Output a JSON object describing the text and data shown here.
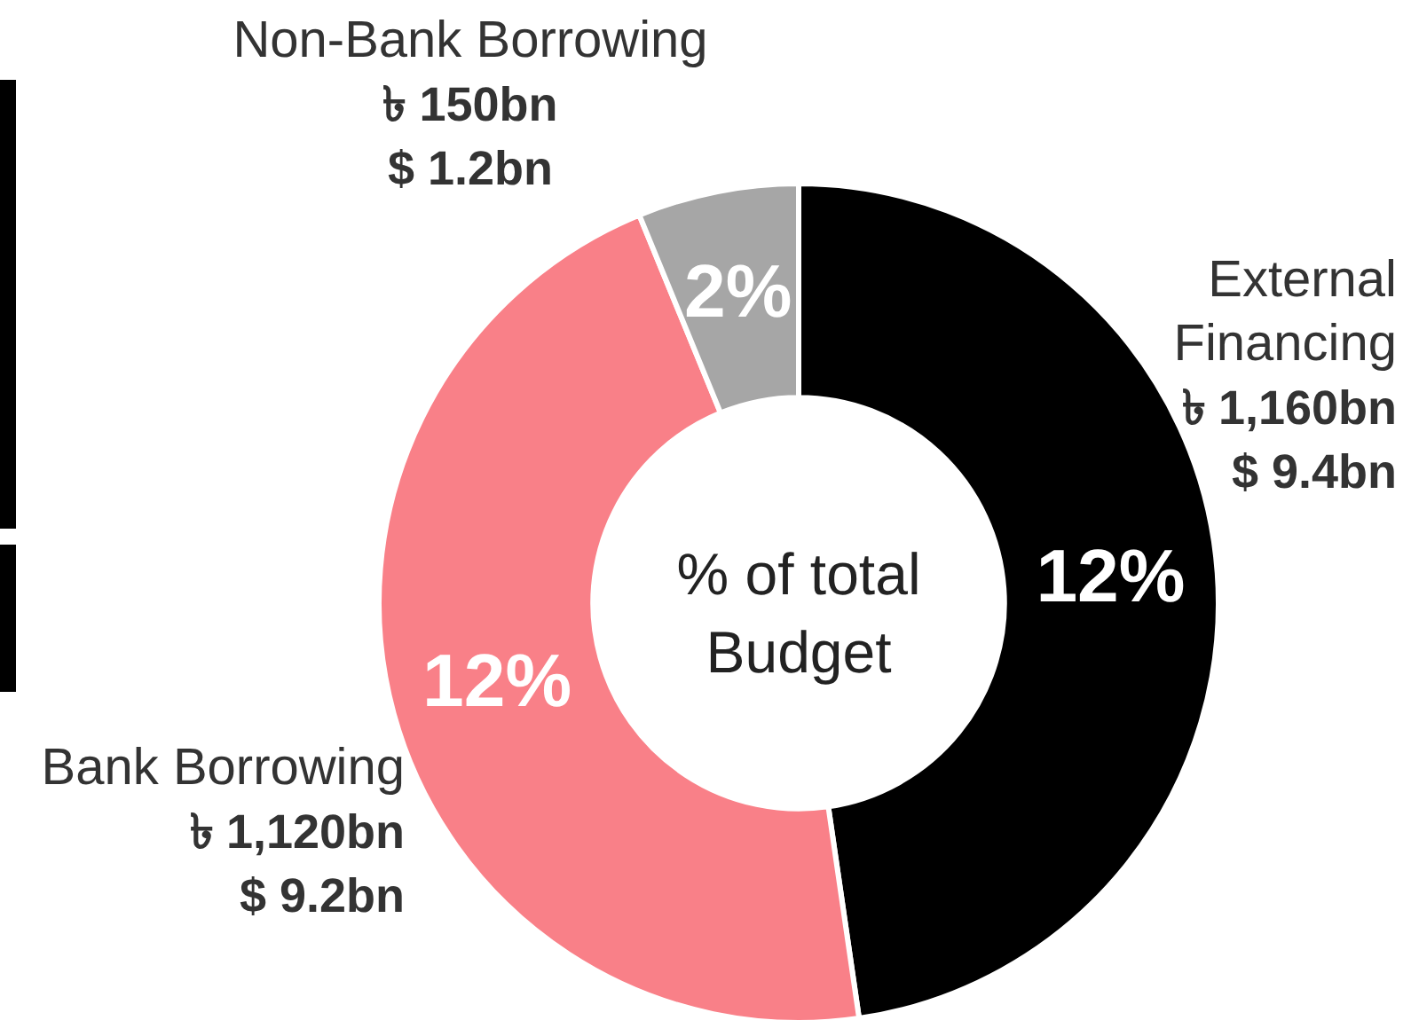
{
  "chart_data": {
    "type": "donut",
    "title": "% of total\nBudget",
    "categories": [
      "External Financing",
      "Bank Borrowing",
      "Non-Bank Borrowing"
    ],
    "values": [
      47.7,
      46.1,
      6.2
    ],
    "colors": [
      "#000000",
      "#f98088",
      "#a6a6a6"
    ],
    "annotations": [
      {
        "text": "12%",
        "x": "External Financing"
      },
      {
        "text": "12%",
        "x": "Bank Borrowing"
      },
      {
        "text": "2%",
        "x": "Non-Bank Borrowing"
      },
      {
        "text": "৳ 1,160bn\n$ 9.4bn",
        "x": "External Financing"
      },
      {
        "text": "৳ 1,120bn\n$ 9.2bn",
        "x": "Bank Borrowing"
      },
      {
        "text": "৳ 150bn\n$ 1.2bn",
        "x": "Non-Bank Borrowing"
      }
    ],
    "legend": false
  }
}
